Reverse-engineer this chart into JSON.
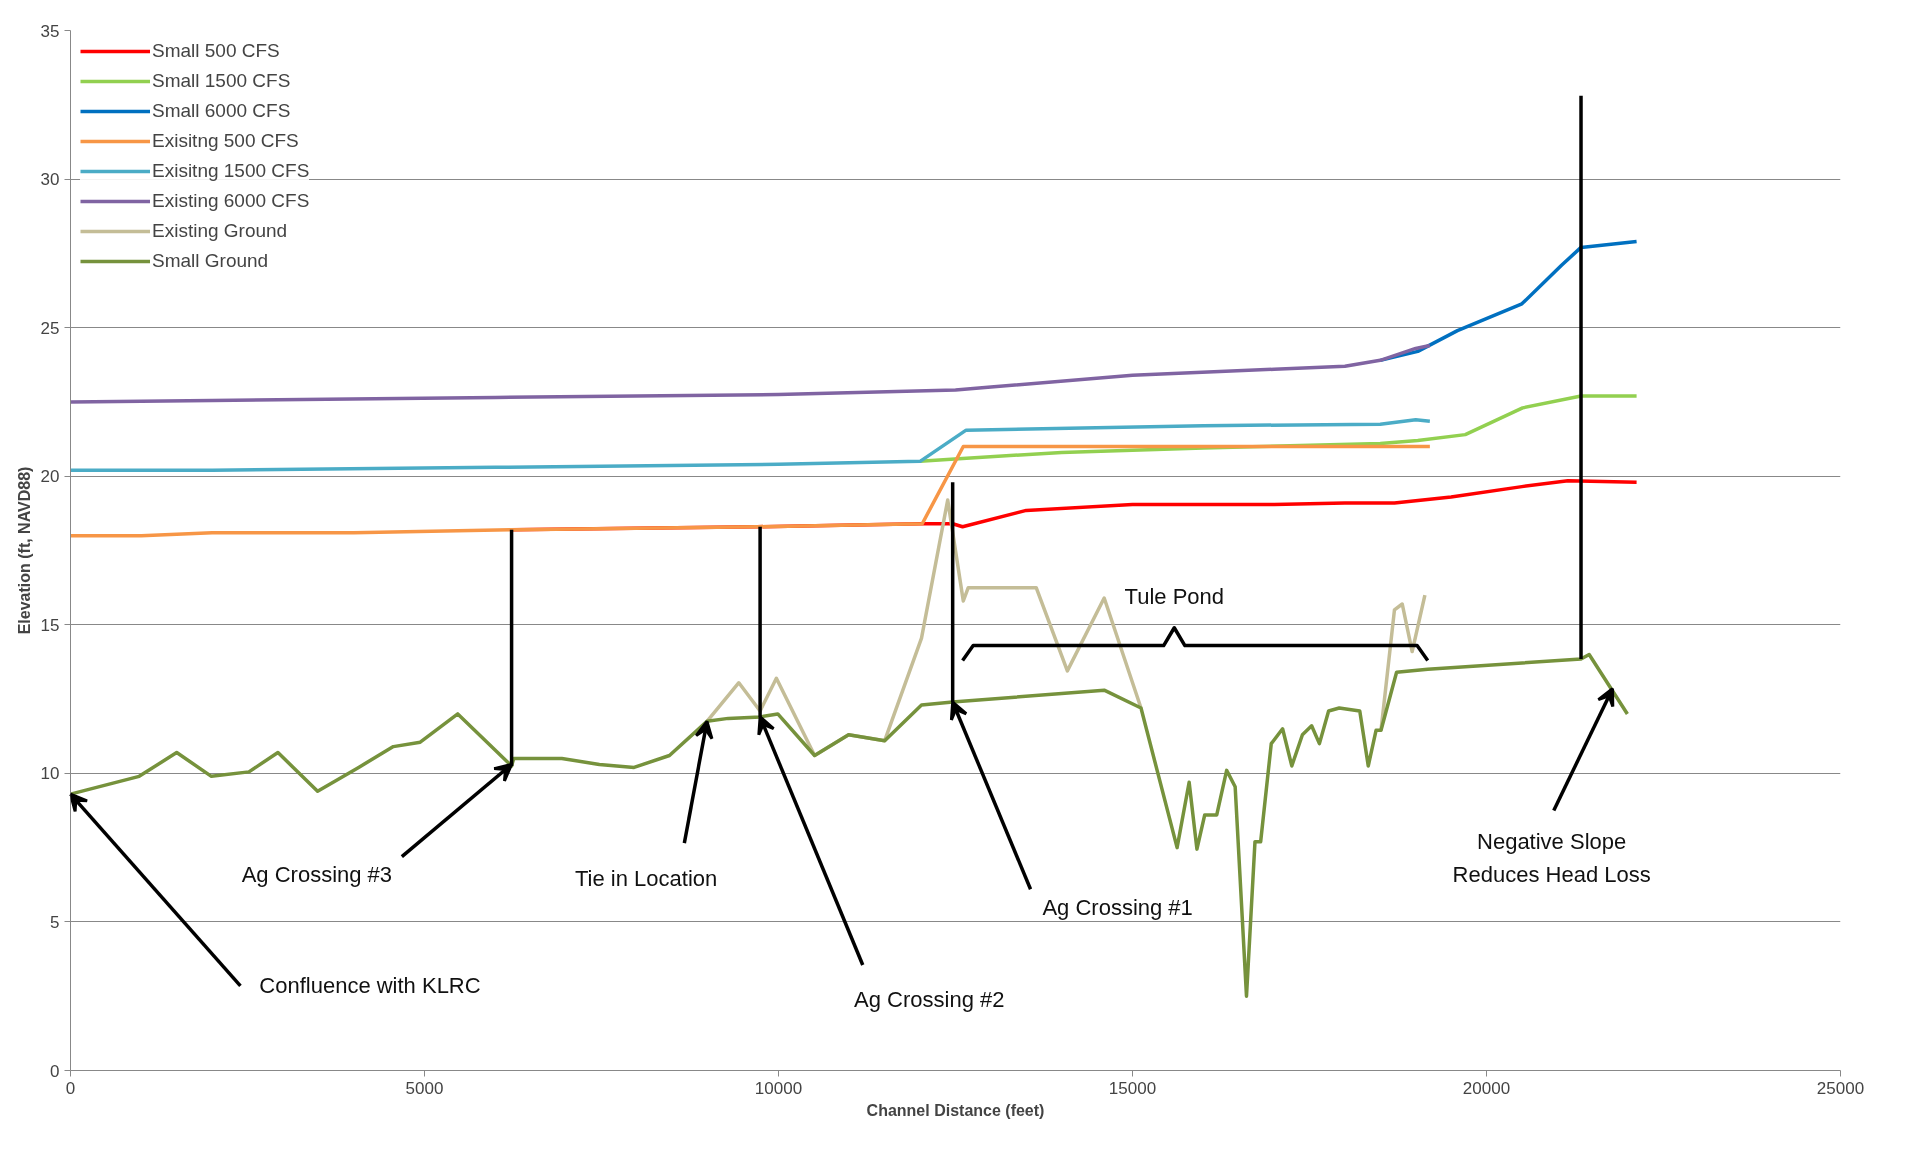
{
  "chart_data": {
    "type": "line",
    "xlabel": "Channel Distance (feet)",
    "ylabel": "Elevation (ft, NAVD88)",
    "xlim": [
      0,
      25000
    ],
    "xticks": [
      0,
      5000,
      10000,
      15000,
      20000,
      25000
    ],
    "ylim": [
      0,
      35
    ],
    "yticks": [
      0,
      5,
      10,
      15,
      20,
      25,
      30,
      35
    ],
    "grid": "y",
    "legend": "top left",
    "series": [
      {
        "name": "Small 500 CFS",
        "color": "#ff0000",
        "x": [
          6230,
          9700,
          12000,
          12460,
          12600,
          13500,
          15000,
          17000,
          18000,
          18700,
          19500,
          20500,
          21150,
          22120
        ],
        "values": [
          18.2,
          18.3,
          18.4,
          18.4,
          18.3,
          18.85,
          19.05,
          19.05,
          19.1,
          19.1,
          19.3,
          19.65,
          19.85,
          19.8
        ]
      },
      {
        "name": "Small 1500 CFS",
        "color": "#92d050",
        "x": [
          12000,
          12600,
          14000,
          16000,
          18500,
          19030,
          19700,
          20510,
          21335,
          22120
        ],
        "values": [
          20.5,
          20.6,
          20.8,
          20.95,
          21.1,
          21.2,
          21.4,
          22.3,
          22.7,
          22.7
        ]
      },
      {
        "name": "Small 6000 CFS",
        "color": "#0070c0",
        "x": [
          18500,
          19030,
          19590,
          20500,
          21060,
          21335,
          22120
        ],
        "values": [
          23.9,
          24.2,
          24.9,
          25.8,
          27.1,
          27.7,
          27.9
        ]
      },
      {
        "name": "Exisitng 500 CFS",
        "color": "#f79646",
        "x": [
          0,
          1000,
          2000,
          4000,
          6300,
          9700,
          12030,
          12610,
          16000,
          19200
        ],
        "values": [
          18.0,
          18.0,
          18.1,
          18.1,
          18.2,
          18.3,
          18.4,
          21.0,
          21.0,
          21.0
        ]
      },
      {
        "name": "Exisitng 1500 CFS",
        "color": "#4bacc6",
        "x": [
          0,
          2000,
          6000,
          10000,
          12000,
          12650,
          16000,
          18500,
          19000,
          19200
        ],
        "values": [
          20.2,
          20.2,
          20.3,
          20.4,
          20.5,
          21.55,
          21.7,
          21.75,
          21.9,
          21.85
        ]
      },
      {
        "name": "Existing 6000 CFS",
        "color": "#8064a2",
        "x": [
          0,
          2000,
          6000,
          10000,
          12500,
          13000,
          15000,
          17000,
          18000,
          18500,
          19000,
          19200
        ],
        "values": [
          22.5,
          22.55,
          22.65,
          22.75,
          22.9,
          23.0,
          23.4,
          23.6,
          23.7,
          23.9,
          24.3,
          24.4
        ]
      },
      {
        "name": "Existing Ground",
        "color": "#c4bd97",
        "x": [
          8990,
          9440,
          9740,
          9970,
          10510,
          10990,
          11500,
          12020,
          12390,
          12610,
          12680,
          13640,
          14080,
          14600,
          15120,
          16000,
          18510,
          18700,
          18810,
          18950,
          19130
        ],
        "values": [
          11.75,
          13.05,
          12.1,
          13.2,
          10.6,
          11.3,
          11.1,
          14.55,
          19.2,
          15.8,
          16.25,
          16.25,
          13.45,
          15.9,
          12.2,
          null,
          11.45,
          15.5,
          15.7,
          14.1,
          16.0
        ]
      },
      {
        "name": "Small Ground",
        "color": "#76923c",
        "x": [
          0,
          970,
          1500,
          1990,
          2520,
          2930,
          3490,
          4070,
          4560,
          4940,
          5470,
          6230,
          6260,
          6940,
          7470,
          7960,
          8460,
          8990,
          9290,
          9740,
          9990,
          10510,
          10990,
          11500,
          12020,
          12460,
          14600,
          15120,
          15630,
          15800,
          15910,
          16020,
          16190,
          16330,
          16450,
          16610,
          16730,
          16810,
          16960,
          17120,
          17250,
          17400,
          17530,
          17640,
          17770,
          17920,
          18210,
          18330,
          18440,
          18510,
          18730,
          19170,
          21335,
          21450,
          21990
        ],
        "values": [
          9.3,
          9.9,
          10.7,
          9.9,
          10.05,
          10.7,
          9.4,
          10.2,
          10.9,
          11.05,
          12.0,
          10.25,
          10.5,
          10.5,
          10.3,
          10.2,
          10.6,
          11.75,
          11.85,
          11.9,
          12.0,
          10.6,
          11.3,
          11.1,
          12.3,
          12.4,
          12.8,
          12.2,
          7.5,
          9.7,
          7.45,
          8.6,
          8.6,
          10.1,
          9.55,
          2.5,
          7.7,
          7.7,
          11.0,
          11.5,
          10.25,
          11.3,
          11.6,
          11.0,
          12.1,
          12.2,
          12.1,
          10.25,
          11.45,
          11.45,
          13.4,
          13.5,
          13.85,
          14.0,
          12.0
        ]
      },
      {
        "color": "#000000",
        "x": [
          6230,
          6230
        ],
        "values": [
          10.25,
          18.2
        ]
      },
      {
        "color": "#000000",
        "x": [
          9740,
          9740
        ],
        "values": [
          11.9,
          18.3
        ]
      },
      {
        "color": "#000000",
        "x": [
          12460,
          12460
        ],
        "values": [
          12.4,
          19.8
        ]
      },
      {
        "color": "#000000",
        "x": [
          21335,
          21335
        ],
        "values": [
          13.85,
          32.8
        ]
      },
      {
        "color": "#000000",
        "x": [
          12600,
          12750,
          15440,
          15590,
          15740,
          19020,
          19170
        ],
        "values": [
          13.8,
          14.3,
          14.3,
          14.9,
          14.3,
          14.3,
          13.8
        ]
      }
    ],
    "annotations": [
      "Tule Pond",
      {
        "text": "Confluence with KLRC",
        "x": 0,
        "y": 9.3
      },
      {
        "text": "Ag Crossing #3",
        "x": 6230,
        "y": 10.3
      },
      {
        "text": "Tie in Location",
        "x": 8990,
        "y": 11.75
      },
      {
        "text": "Ag Crossing #2",
        "x": 9740,
        "y": 11.9
      },
      {
        "text": "Ag Crossing #1",
        "x": 12460,
        "y": 12.4
      },
      {
        "text": "Negative Slope\nReduces Head Loss",
        "x": 21780,
        "y": 12.85
      }
    ]
  }
}
